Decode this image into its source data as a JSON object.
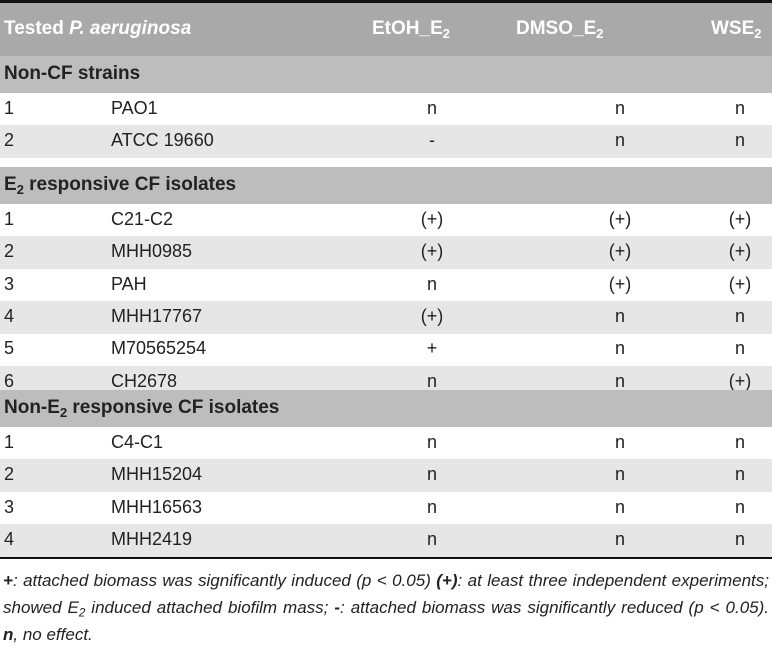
{
  "header": {
    "col1_prefix": "Tested ",
    "col1_species": "P. aeruginosa",
    "col2_base": "EtOH_E",
    "col2_sub": "2",
    "col3_base": "DMSO_E",
    "col3_sub": "2",
    "col4_base": "WSE",
    "col4_sub": "2"
  },
  "sections": [
    {
      "title_pre": "Non-CF strains",
      "title_sub": "",
      "title_post": "",
      "rows": [
        {
          "num": "1",
          "strain": "PAO1",
          "etoh": "n",
          "dmso": "n",
          "wse": "n"
        },
        {
          "num": "2",
          "strain": "ATCC 19660",
          "etoh": "-",
          "dmso": "n",
          "wse": "n"
        }
      ]
    },
    {
      "title_pre": "E",
      "title_sub": "2",
      "title_post": " responsive CF isolates",
      "rows": [
        {
          "num": "1",
          "strain": "C21-C2",
          "etoh": "(+)",
          "dmso": "(+)",
          "wse": "(+)"
        },
        {
          "num": "2",
          "strain": "MHH0985",
          "etoh": "(+)",
          "dmso": "(+)",
          "wse": "(+)"
        },
        {
          "num": "3",
          "strain": "PAH",
          "etoh": "n",
          "dmso": "(+)",
          "wse": "(+)"
        },
        {
          "num": "4",
          "strain": "MHH17767",
          "etoh": "(+)",
          "dmso": "n",
          "wse": "n"
        },
        {
          "num": "5",
          "strain": "M70565254",
          "etoh": "+",
          "dmso": "n",
          "wse": "n"
        },
        {
          "num": "6",
          "strain": "CH2678",
          "etoh": "n",
          "dmso": "n",
          "wse": "(+)"
        }
      ]
    },
    {
      "title_pre": "Non-E",
      "title_sub": "2",
      "title_post": " responsive CF isolates",
      "rows": [
        {
          "num": "1",
          "strain": "C4-C1",
          "etoh": "n",
          "dmso": "n",
          "wse": "n"
        },
        {
          "num": "2",
          "strain": "MHH15204",
          "etoh": "n",
          "dmso": "n",
          "wse": "n"
        },
        {
          "num": "3",
          "strain": "MHH16563",
          "etoh": "n",
          "dmso": "n",
          "wse": "n"
        },
        {
          "num": "4",
          "strain": "MHH2419",
          "etoh": "n",
          "dmso": "n",
          "wse": "n"
        }
      ]
    }
  ],
  "footnote": {
    "s1_mark": "+",
    "s1_text": ": attached biomass was significantly induced (p < 0.05) ",
    "s2_mark": "(+)",
    "s2_text_a": ": at least three independent experiments; showed E",
    "s2_sub": "2",
    "s2_text_b": " induced attached biofilm mass; ",
    "s3_mark": "-",
    "s3_text": ": attached biomass was significantly reduced (p < 0.05). ",
    "s4_mark": "n",
    "s4_text": ", no effect."
  }
}
